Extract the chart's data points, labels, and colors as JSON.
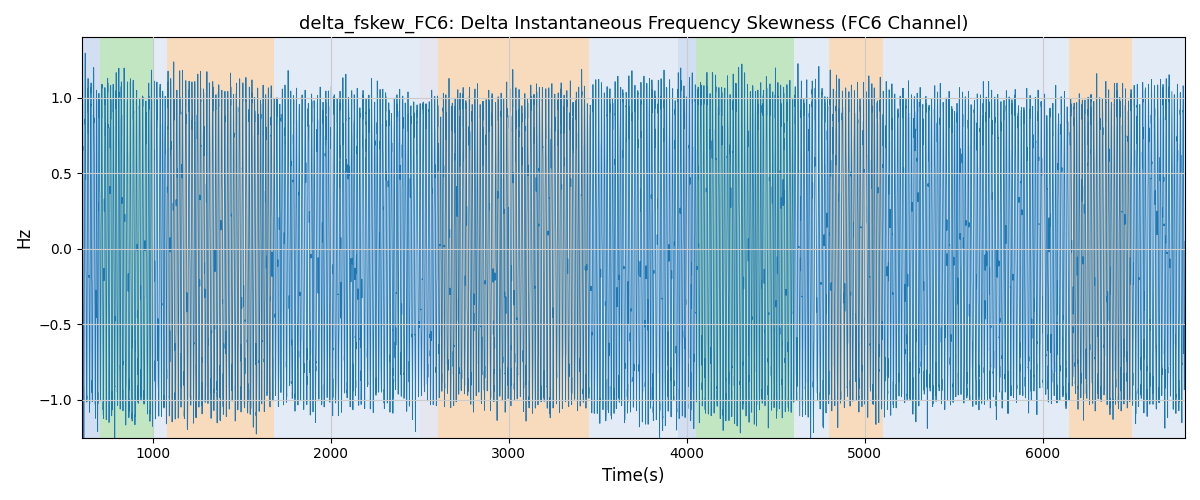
{
  "title": "delta_fskew_FC6: Delta Instantaneous Frequency Skewness (FC6 Channel)",
  "xlabel": "Time(s)",
  "ylabel": "Hz",
  "xlim": [
    600,
    6800
  ],
  "ylim": [
    -1.25,
    1.4
  ],
  "line_color": "#1f77b4",
  "line_width": 0.6,
  "background_color": "#ffffff",
  "grid_color": "#cccccc",
  "yticks": [
    -1.0,
    -0.5,
    0.0,
    0.5,
    1.0
  ],
  "xticks": [
    1000,
    2000,
    3000,
    4000,
    5000,
    6000
  ],
  "colored_bands": [
    {
      "xmin": 600,
      "xmax": 700,
      "color": "#aec6e8",
      "alpha": 0.55
    },
    {
      "xmin": 700,
      "xmax": 1000,
      "color": "#90d090",
      "alpha": 0.55
    },
    {
      "xmin": 1000,
      "xmax": 1080,
      "color": "#aec6e8",
      "alpha": 0.35
    },
    {
      "xmin": 1080,
      "xmax": 1680,
      "color": "#f5c99a",
      "alpha": 0.65
    },
    {
      "xmin": 1680,
      "xmax": 1850,
      "color": "#aec6e8",
      "alpha": 0.35
    },
    {
      "xmin": 1850,
      "xmax": 2500,
      "color": "#aec6e8",
      "alpha": 0.35
    },
    {
      "xmin": 2500,
      "xmax": 2600,
      "color": "#c8c8e0",
      "alpha": 0.45
    },
    {
      "xmin": 2600,
      "xmax": 3450,
      "color": "#f5c99a",
      "alpha": 0.65
    },
    {
      "xmin": 3450,
      "xmax": 3950,
      "color": "#aec6e8",
      "alpha": 0.35
    },
    {
      "xmin": 3950,
      "xmax": 4050,
      "color": "#aec6e8",
      "alpha": 0.55
    },
    {
      "xmin": 4050,
      "xmax": 4600,
      "color": "#90d090",
      "alpha": 0.55
    },
    {
      "xmin": 4600,
      "xmax": 4800,
      "color": "#aec6e8",
      "alpha": 0.35
    },
    {
      "xmin": 4800,
      "xmax": 5100,
      "color": "#f5c99a",
      "alpha": 0.65
    },
    {
      "xmin": 5100,
      "xmax": 5800,
      "color": "#aec6e8",
      "alpha": 0.35
    },
    {
      "xmin": 5800,
      "xmax": 6150,
      "color": "#aec6e8",
      "alpha": 0.35
    },
    {
      "xmin": 6150,
      "xmax": 6500,
      "color": "#f5c99a",
      "alpha": 0.65
    },
    {
      "xmin": 6500,
      "xmax": 6800,
      "color": "#aec6e8",
      "alpha": 0.35
    }
  ],
  "seed": 1234,
  "n_points": 12000
}
